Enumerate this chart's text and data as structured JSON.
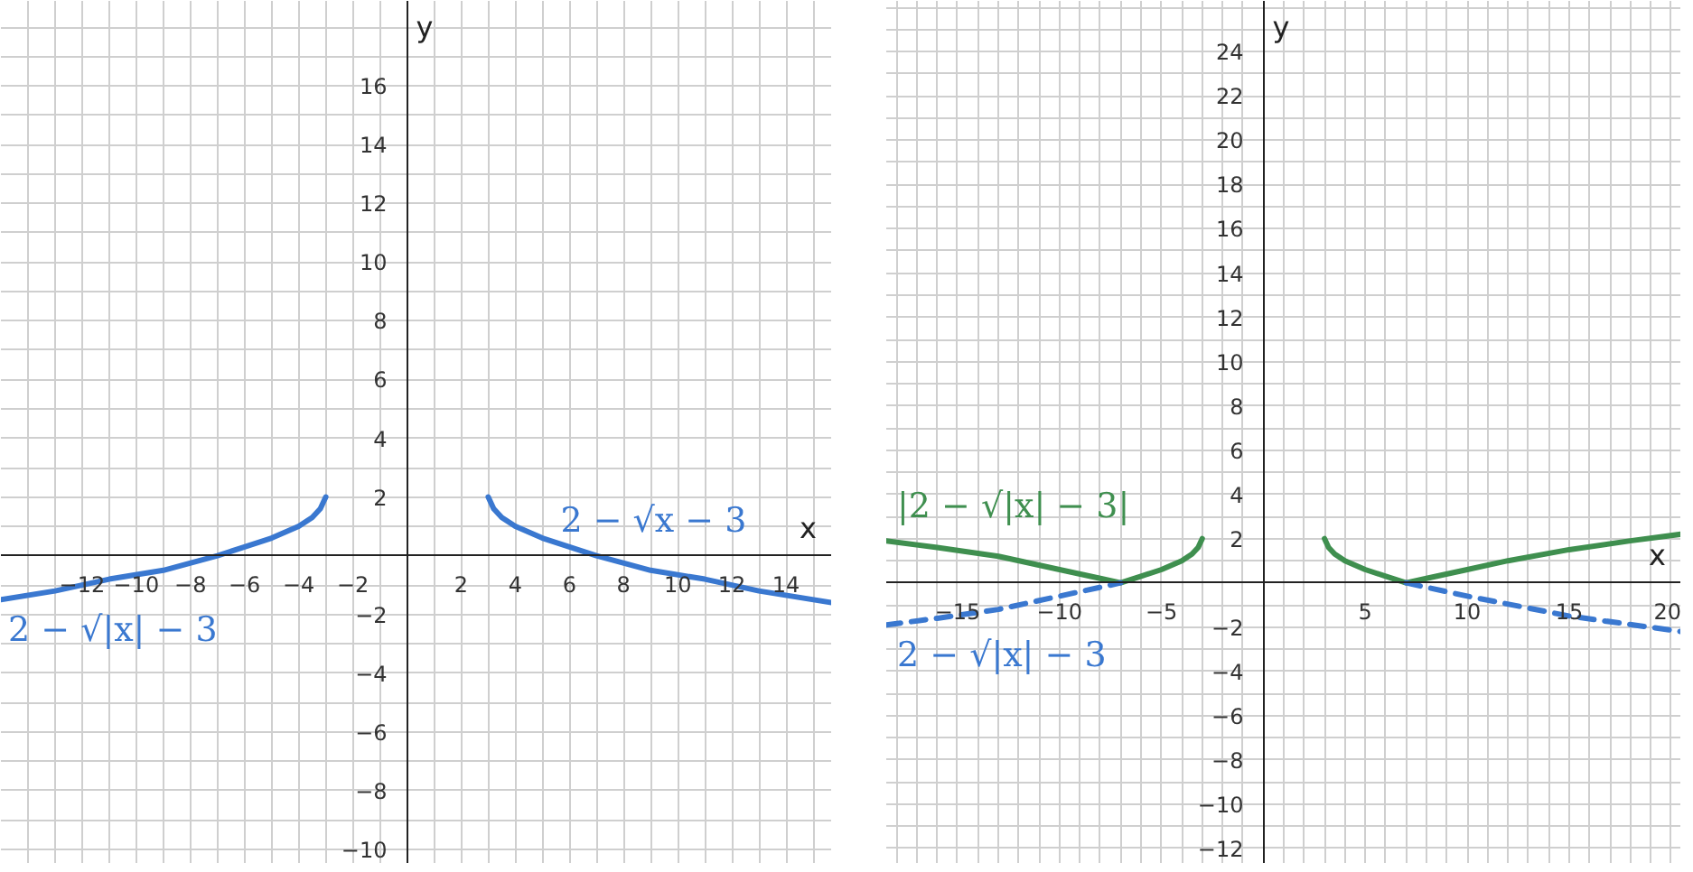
{
  "chart_data": [
    {
      "type": "line",
      "xlabel": "x",
      "ylabel": "y",
      "xlim": [
        -15,
        15.7
      ],
      "ylim": [
        -10.5,
        18.9
      ],
      "xticks": [
        -12,
        -10,
        -8,
        -6,
        -4,
        -2,
        2,
        4,
        6,
        8,
        10,
        12,
        14
      ],
      "yticks": [
        -10,
        -8,
        -6,
        -4,
        -2,
        2,
        4,
        6,
        8,
        10,
        12,
        14,
        16
      ],
      "grid": true,
      "series": [
        {
          "name": "2 − √|x| − 3",
          "color": "#3a78d0",
          "x": [
            -15,
            -13,
            -11,
            -9,
            -7,
            -6,
            -5,
            -4,
            -3.5,
            -3.2,
            -3
          ],
          "values": [
            -1.5,
            -1.2,
            -0.8,
            -0.5,
            0,
            0.3,
            0.6,
            1,
            1.3,
            1.6,
            2
          ]
        },
        {
          "name": "2 − √x − 3",
          "color": "#3a78d0",
          "x": [
            3,
            3.2,
            3.5,
            4,
            5,
            6,
            7,
            9,
            11,
            13,
            15.7
          ],
          "values": [
            2,
            1.6,
            1.3,
            1,
            0.6,
            0.3,
            0,
            -0.5,
            -0.8,
            -1.2,
            -1.6
          ]
        }
      ]
    },
    {
      "type": "line",
      "xlabel": "x",
      "ylabel": "y",
      "xlim": [
        -18.5,
        20.5
      ],
      "ylim": [
        -12.7,
        26.3
      ],
      "xticks": [
        -15,
        -10,
        -5,
        5,
        10,
        15,
        20
      ],
      "yticks": [
        -12,
        -10,
        -8,
        -6,
        -4,
        -2,
        2,
        4,
        6,
        8,
        10,
        12,
        14,
        16,
        18,
        20,
        22,
        24
      ],
      "grid": true,
      "series": [
        {
          "name": "|2 − √|x| − 3|",
          "color": "#3f8f4f",
          "x": [
            -18.5,
            -16,
            -13,
            -10,
            -8,
            -7,
            -6,
            -5,
            -4,
            -3.5,
            -3.2,
            -3
          ],
          "values": [
            1.9,
            1.6,
            1.2,
            0.6,
            0.2,
            0,
            0.3,
            0.6,
            1,
            1.3,
            1.6,
            2
          ]
        },
        {
          "color": "#3f8f4f",
          "x": [
            3,
            3.2,
            3.5,
            4,
            5,
            6,
            7,
            8,
            10,
            12,
            15,
            18,
            20.5
          ],
          "values": [
            2,
            1.6,
            1.3,
            1,
            0.6,
            0.3,
            0,
            0.2,
            0.6,
            1,
            1.5,
            1.9,
            2.2
          ]
        },
        {
          "name": "2 − √|x| − 3",
          "color": "#3a78d0",
          "line_style": "dashed",
          "x": [
            -18.5,
            -16,
            -13,
            -10,
            -7
          ],
          "values": [
            -1.9,
            -1.6,
            -1.2,
            -0.6,
            0
          ]
        },
        {
          "color": "#3a78d0",
          "line_style": "dashed",
          "x": [
            7,
            10,
            15,
            20.5
          ],
          "values": [
            0,
            -0.6,
            -1.5,
            -2.2
          ]
        }
      ]
    }
  ]
}
